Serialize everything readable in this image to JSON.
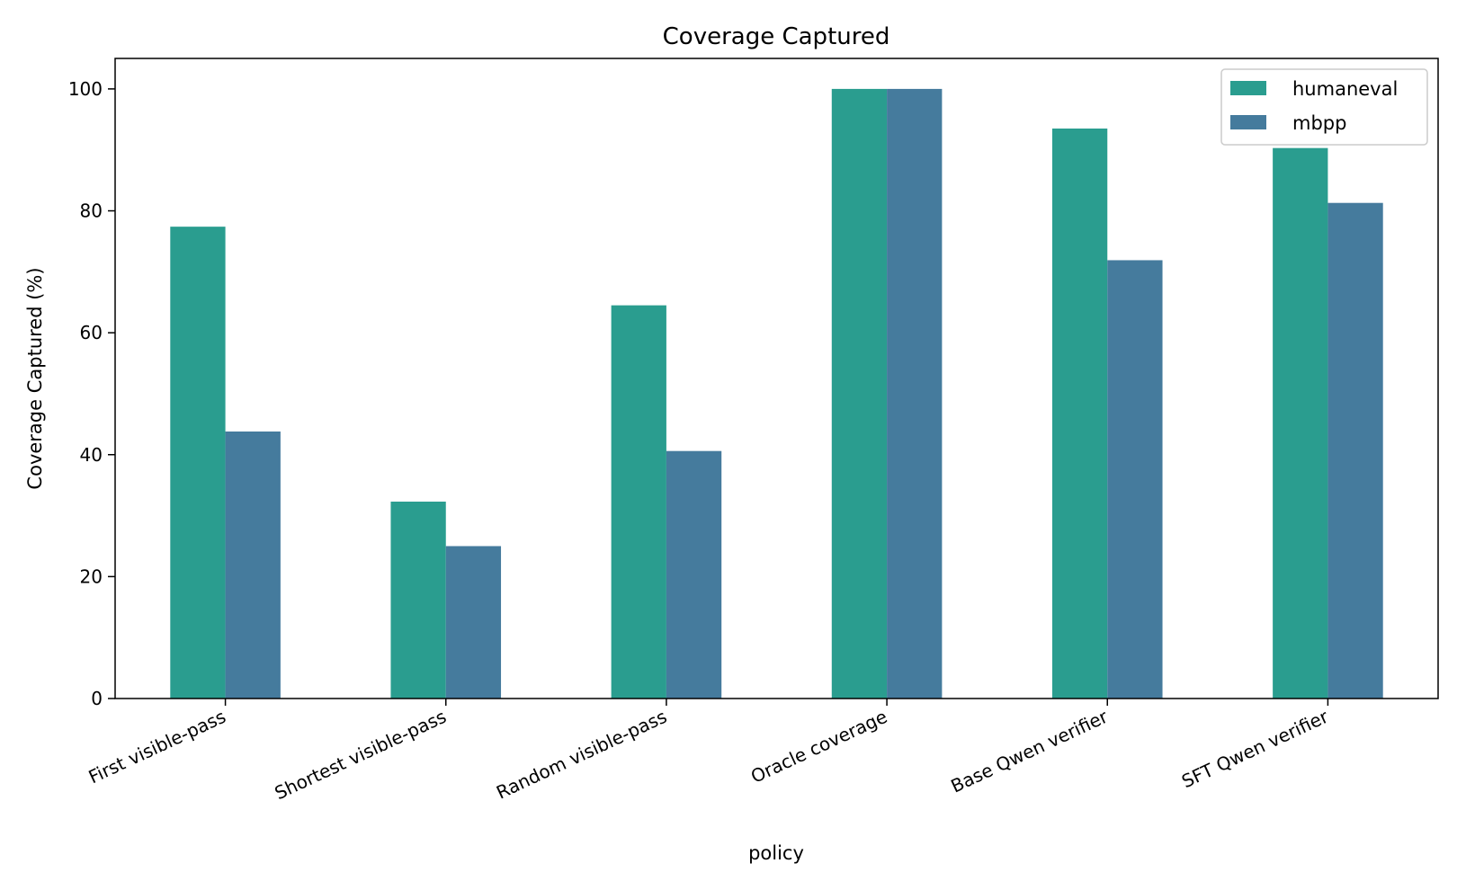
{
  "chart_data": {
    "type": "bar",
    "title": "Coverage Captured",
    "xlabel": "policy",
    "ylabel": "Coverage Captured (%)",
    "categories": [
      "First visible-pass",
      "Shortest visible-pass",
      "Random visible-pass",
      "Oracle coverage",
      "Base Qwen verifier",
      "SFT Qwen verifier"
    ],
    "series": [
      {
        "name": "humaneval",
        "color": "#2a9d8f",
        "values": [
          77.4,
          32.3,
          64.5,
          100.0,
          93.5,
          90.3
        ]
      },
      {
        "name": "mbpp",
        "color": "#457b9d",
        "values": [
          43.8,
          25.0,
          40.6,
          100.0,
          71.9,
          81.3
        ]
      }
    ],
    "yticks": [
      0,
      20,
      40,
      60,
      80,
      100
    ],
    "ylim": [
      0,
      105
    ],
    "legend_position": "top-right",
    "grid": false
  }
}
